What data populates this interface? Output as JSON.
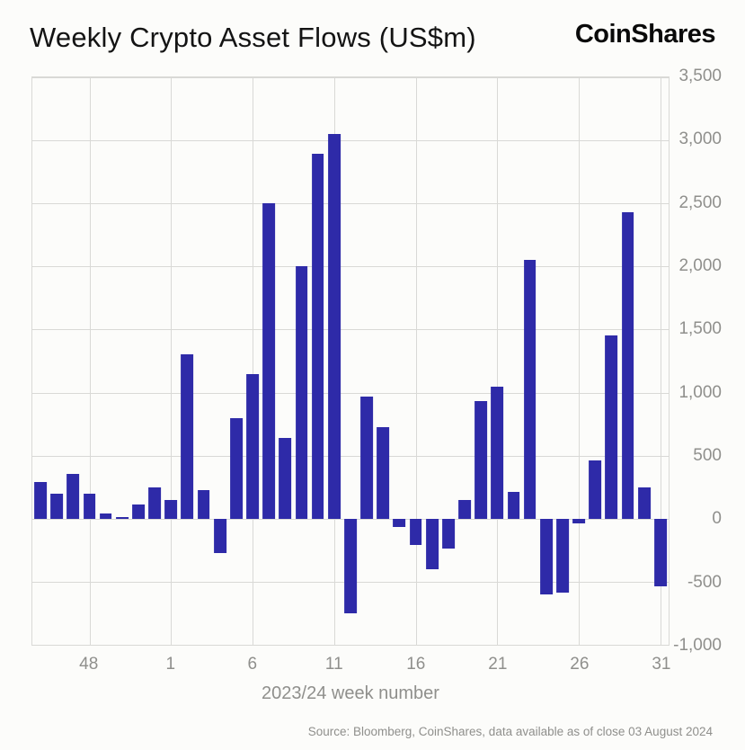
{
  "header": {
    "title": "Weekly Crypto Asset Flows (US$m)",
    "logo": "CoinShares"
  },
  "chart_data": {
    "type": "bar",
    "title": "Weekly Crypto Asset Flows (US$m)",
    "xlabel": "2023/24 week number",
    "ylabel": "",
    "ylim": [
      -1000,
      3500
    ],
    "ytick_step": 500,
    "yticks_labels": [
      "3,500",
      "3,000",
      "2,500",
      "2,000",
      "1,500",
      "1,000",
      "500",
      "0",
      "-500",
      "-1,000"
    ],
    "categories": [
      45,
      46,
      47,
      48,
      49,
      50,
      51,
      52,
      1,
      2,
      3,
      4,
      5,
      6,
      7,
      8,
      9,
      10,
      11,
      12,
      13,
      14,
      15,
      16,
      17,
      18,
      19,
      20,
      21,
      22,
      23,
      24,
      25,
      26,
      27,
      28,
      29,
      30,
      31
    ],
    "values": [
      290,
      195,
      355,
      195,
      40,
      15,
      115,
      245,
      150,
      1300,
      230,
      -270,
      800,
      1150,
      2500,
      640,
      2000,
      2895,
      3050,
      -750,
      965,
      725,
      -65,
      -205,
      -400,
      -235,
      150,
      930,
      1050,
      210,
      2050,
      -600,
      -585,
      -35,
      460,
      1450,
      2430,
      250,
      -540
    ],
    "xtick_labels": [
      "48",
      "1",
      "6",
      "11",
      "16",
      "21",
      "26",
      "31"
    ],
    "xtick_indices": [
      3,
      8,
      13,
      18,
      23,
      28,
      33,
      38
    ],
    "bar_color": "#2e2aa8",
    "grid": true,
    "legend": "none"
  },
  "footer": {
    "source": "Source: Bloomberg, CoinShares, data available as of close 03 August 2024"
  }
}
